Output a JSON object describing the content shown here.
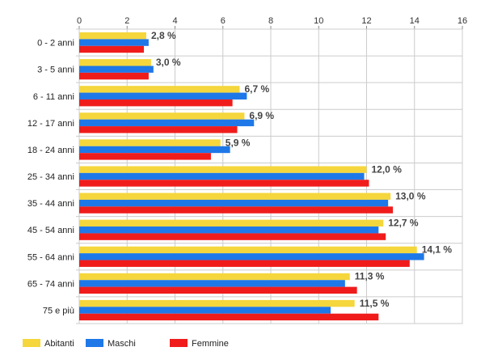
{
  "chart_data": {
    "type": "bar",
    "orientation": "horizontal",
    "categories": [
      "0 - 2 anni",
      "3 - 5 anni",
      "6 - 11 anni",
      "12 - 17 anni",
      "18 - 24 anni",
      "25 - 34 anni",
      "35 - 44 anni",
      "45 - 54 anni",
      "55 - 64 anni",
      "65 - 74 anni",
      "75 e più"
    ],
    "series": [
      {
        "name": "Abitanti",
        "color": "#f5d63c",
        "values": [
          2.8,
          3.0,
          6.7,
          6.9,
          5.9,
          12.0,
          13.0,
          12.7,
          14.1,
          11.3,
          11.5
        ]
      },
      {
        "name": "Maschi",
        "color": "#1f78e8",
        "values": [
          2.9,
          3.1,
          7.0,
          7.3,
          6.3,
          11.9,
          12.9,
          12.5,
          14.4,
          11.1,
          10.5
        ]
      },
      {
        "name": "Femmine",
        "color": "#f01c1c",
        "values": [
          2.7,
          2.9,
          6.4,
          6.6,
          5.5,
          12.1,
          13.1,
          12.8,
          13.8,
          11.6,
          12.5
        ]
      }
    ],
    "data_labels": [
      "2,8 %",
      "3,0 %",
      "6,7 %",
      "6,9 %",
      "5,9 %",
      "12,0 %",
      "13,0 %",
      "12,7 %",
      "14,1 %",
      "11,3 %",
      "11,5 %"
    ],
    "xlim": [
      0,
      16
    ],
    "x_ticks": [
      0,
      2,
      4,
      6,
      8,
      10,
      12,
      14,
      16
    ],
    "x_tick_labels": [
      "0",
      "2",
      "4",
      "6",
      "8",
      "10",
      "12",
      "14",
      "16"
    ],
    "x_axis_position": "top",
    "grid": true,
    "legend": {
      "position": "bottom-left",
      "entries": [
        "Abitanti",
        "Maschi",
        "Femmine"
      ]
    },
    "title": "",
    "xlabel": "",
    "ylabel": ""
  }
}
